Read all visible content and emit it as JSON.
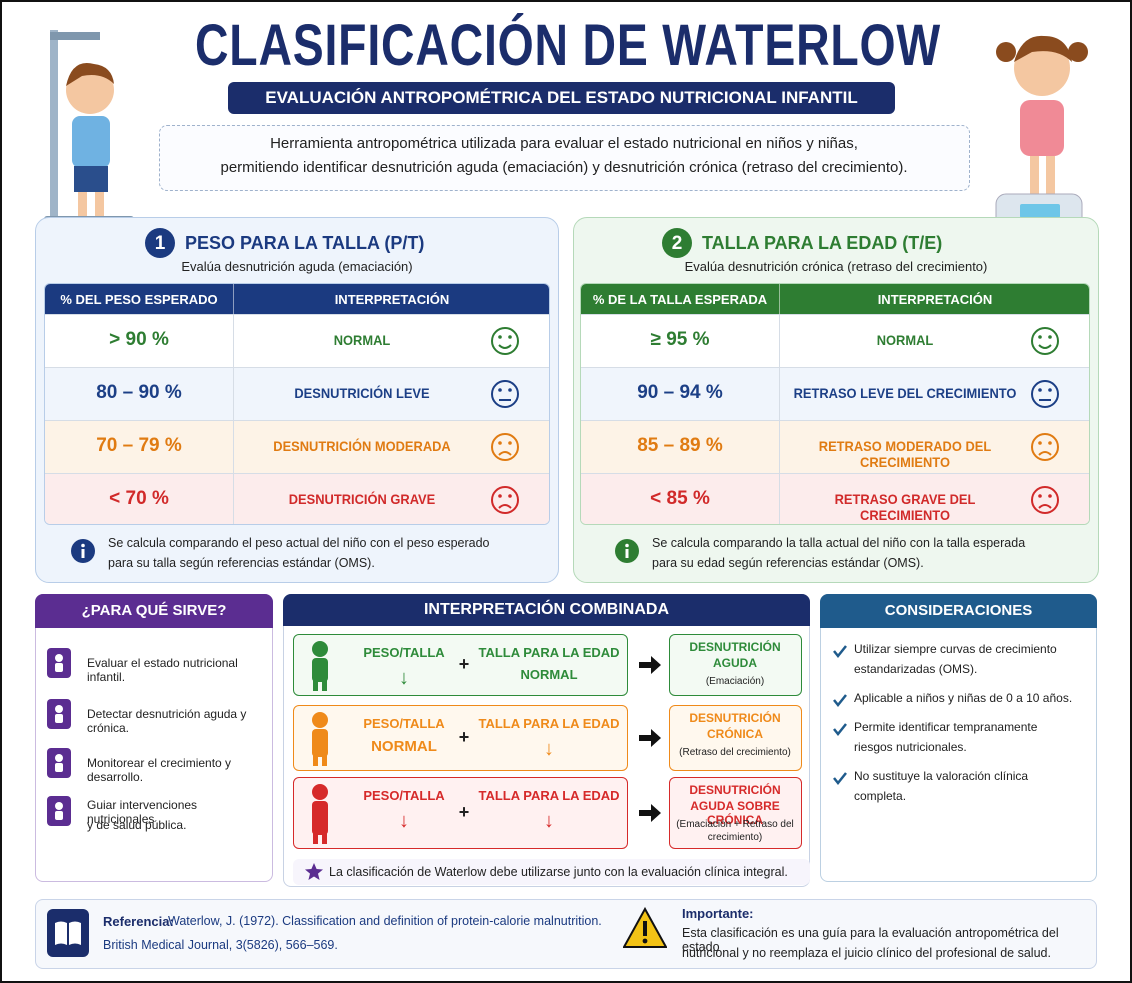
{
  "header": {
    "title": "CLASIFICACIÓN DE WATERLOW",
    "subtitle": "EVALUACIÓN ANTROPOMÉTRICA DEL ESTADO NUTRICIONAL INFANTIL",
    "description": [
      "Herramienta antropométrica utilizada para evaluar el estado nutricional en niños y niñas,",
      "permitiendo identificar desnutrición aguda (emaciación) y desnutrición crónica (retraso del crecimiento)."
    ]
  },
  "panels": [
    {
      "number": "1",
      "title": "PESO PARA LA TALLA (P/T)",
      "subtitle": "Evalúa desnutrición aguda (emaciación)",
      "columns": [
        "% DEL PESO ESPERADO",
        "INTERPRETACIÓN"
      ],
      "rows": [
        [
          "> 90 %",
          "NORMAL"
        ],
        [
          "80 – 90 %",
          "DESNUTRICIÓN LEVE"
        ],
        [
          "70 – 79 %",
          "DESNUTRICIÓN MODERADA"
        ],
        [
          "< 70 %",
          "DESNUTRICIÓN GRAVE"
        ]
      ],
      "note": [
        "Se calcula comparando el peso actual del niño con el peso esperado",
        "para su talla según referencias estándar (OMS)."
      ]
    },
    {
      "number": "2",
      "title": "TALLA PARA LA EDAD (T/E)",
      "subtitle": "Evalúa desnutrición crónica (retraso del crecimiento)",
      "columns": [
        "% DE LA TALLA ESPERADA",
        "INTERPRETACIÓN"
      ],
      "rows": [
        [
          "≥ 95 %",
          "NORMAL"
        ],
        [
          "90 – 94 %",
          "RETRASO LEVE DEL CRECIMIENTO"
        ],
        [
          "85 – 89 %",
          "RETRASO MODERADO DEL CRECIMIENTO"
        ],
        [
          "< 85 %",
          "RETRASO GRAVE DEL CRECIMIENTO"
        ]
      ],
      "note": [
        "Se calcula comparando la talla actual del niño con la talla esperada",
        "para su edad según referencias estándar (OMS)."
      ]
    }
  ],
  "uses": {
    "title": "¿PARA QUÉ SIRVE?",
    "items": [
      [
        "Evaluar el estado nutricional infantil."
      ],
      [
        "Detectar desnutrición aguda y crónica."
      ],
      [
        "Monitorear el crecimiento y desarrollo."
      ],
      [
        "Guiar intervenciones nutricionales",
        "y de salud pública."
      ]
    ]
  },
  "combined": {
    "title": "INTERPRETACIÓN COMBINADA",
    "rows": [
      {
        "left": [
          "PESO/TALLA",
          "↓"
        ],
        "plus": "+",
        "right": [
          "TALLA PARA LA EDAD",
          "NORMAL"
        ],
        "result": [
          "DESNUTRICIÓN",
          "AGUDA"
        ],
        "detail": [
          "(Emaciación)"
        ]
      },
      {
        "left": [
          "PESO/TALLA",
          "NORMAL"
        ],
        "plus": "+",
        "right": [
          "TALLA PARA LA EDAD",
          "↓"
        ],
        "result": [
          "DESNUTRICIÓN",
          "CRÓNICA"
        ],
        "detail": [
          "(Retraso del crecimiento)"
        ]
      },
      {
        "left": [
          "PESO/TALLA",
          "↓"
        ],
        "plus": "+",
        "right": [
          "TALLA PARA LA EDAD",
          "↓"
        ],
        "result": [
          "DESNUTRICIÓN",
          "AGUDA SOBRE CRÓNICA"
        ],
        "detail": [
          "(Emaciación + Retraso del",
          "crecimiento)"
        ]
      }
    ],
    "note": "La clasificación de Waterlow debe utilizarse junto con la evaluación clínica integral."
  },
  "considerations": {
    "title": "CONSIDERACIONES",
    "items": [
      [
        "Utilizar siempre curvas de crecimiento",
        "estandarizadas (OMS)."
      ],
      [
        "Aplicable a niños y niñas de 0 a 10 años."
      ],
      [
        "Permite identificar tempranamente",
        "riesgos nutricionales."
      ],
      [
        "No sustituye la valoración clínica",
        "completa."
      ]
    ]
  },
  "reference": {
    "label": "Referencia:",
    "text": [
      "Waterlow, J. (1972). Classification and definition of protein-calorie malnutrition.",
      "British Medical Journal, 3(5826), 566–569."
    ]
  },
  "important": {
    "label": "Importante:",
    "text": [
      "Esta clasificación es una guía para la evaluación antropométrica del estado",
      "nutricional y no reemplaza el juicio clínico del profesional de salud."
    ]
  }
}
